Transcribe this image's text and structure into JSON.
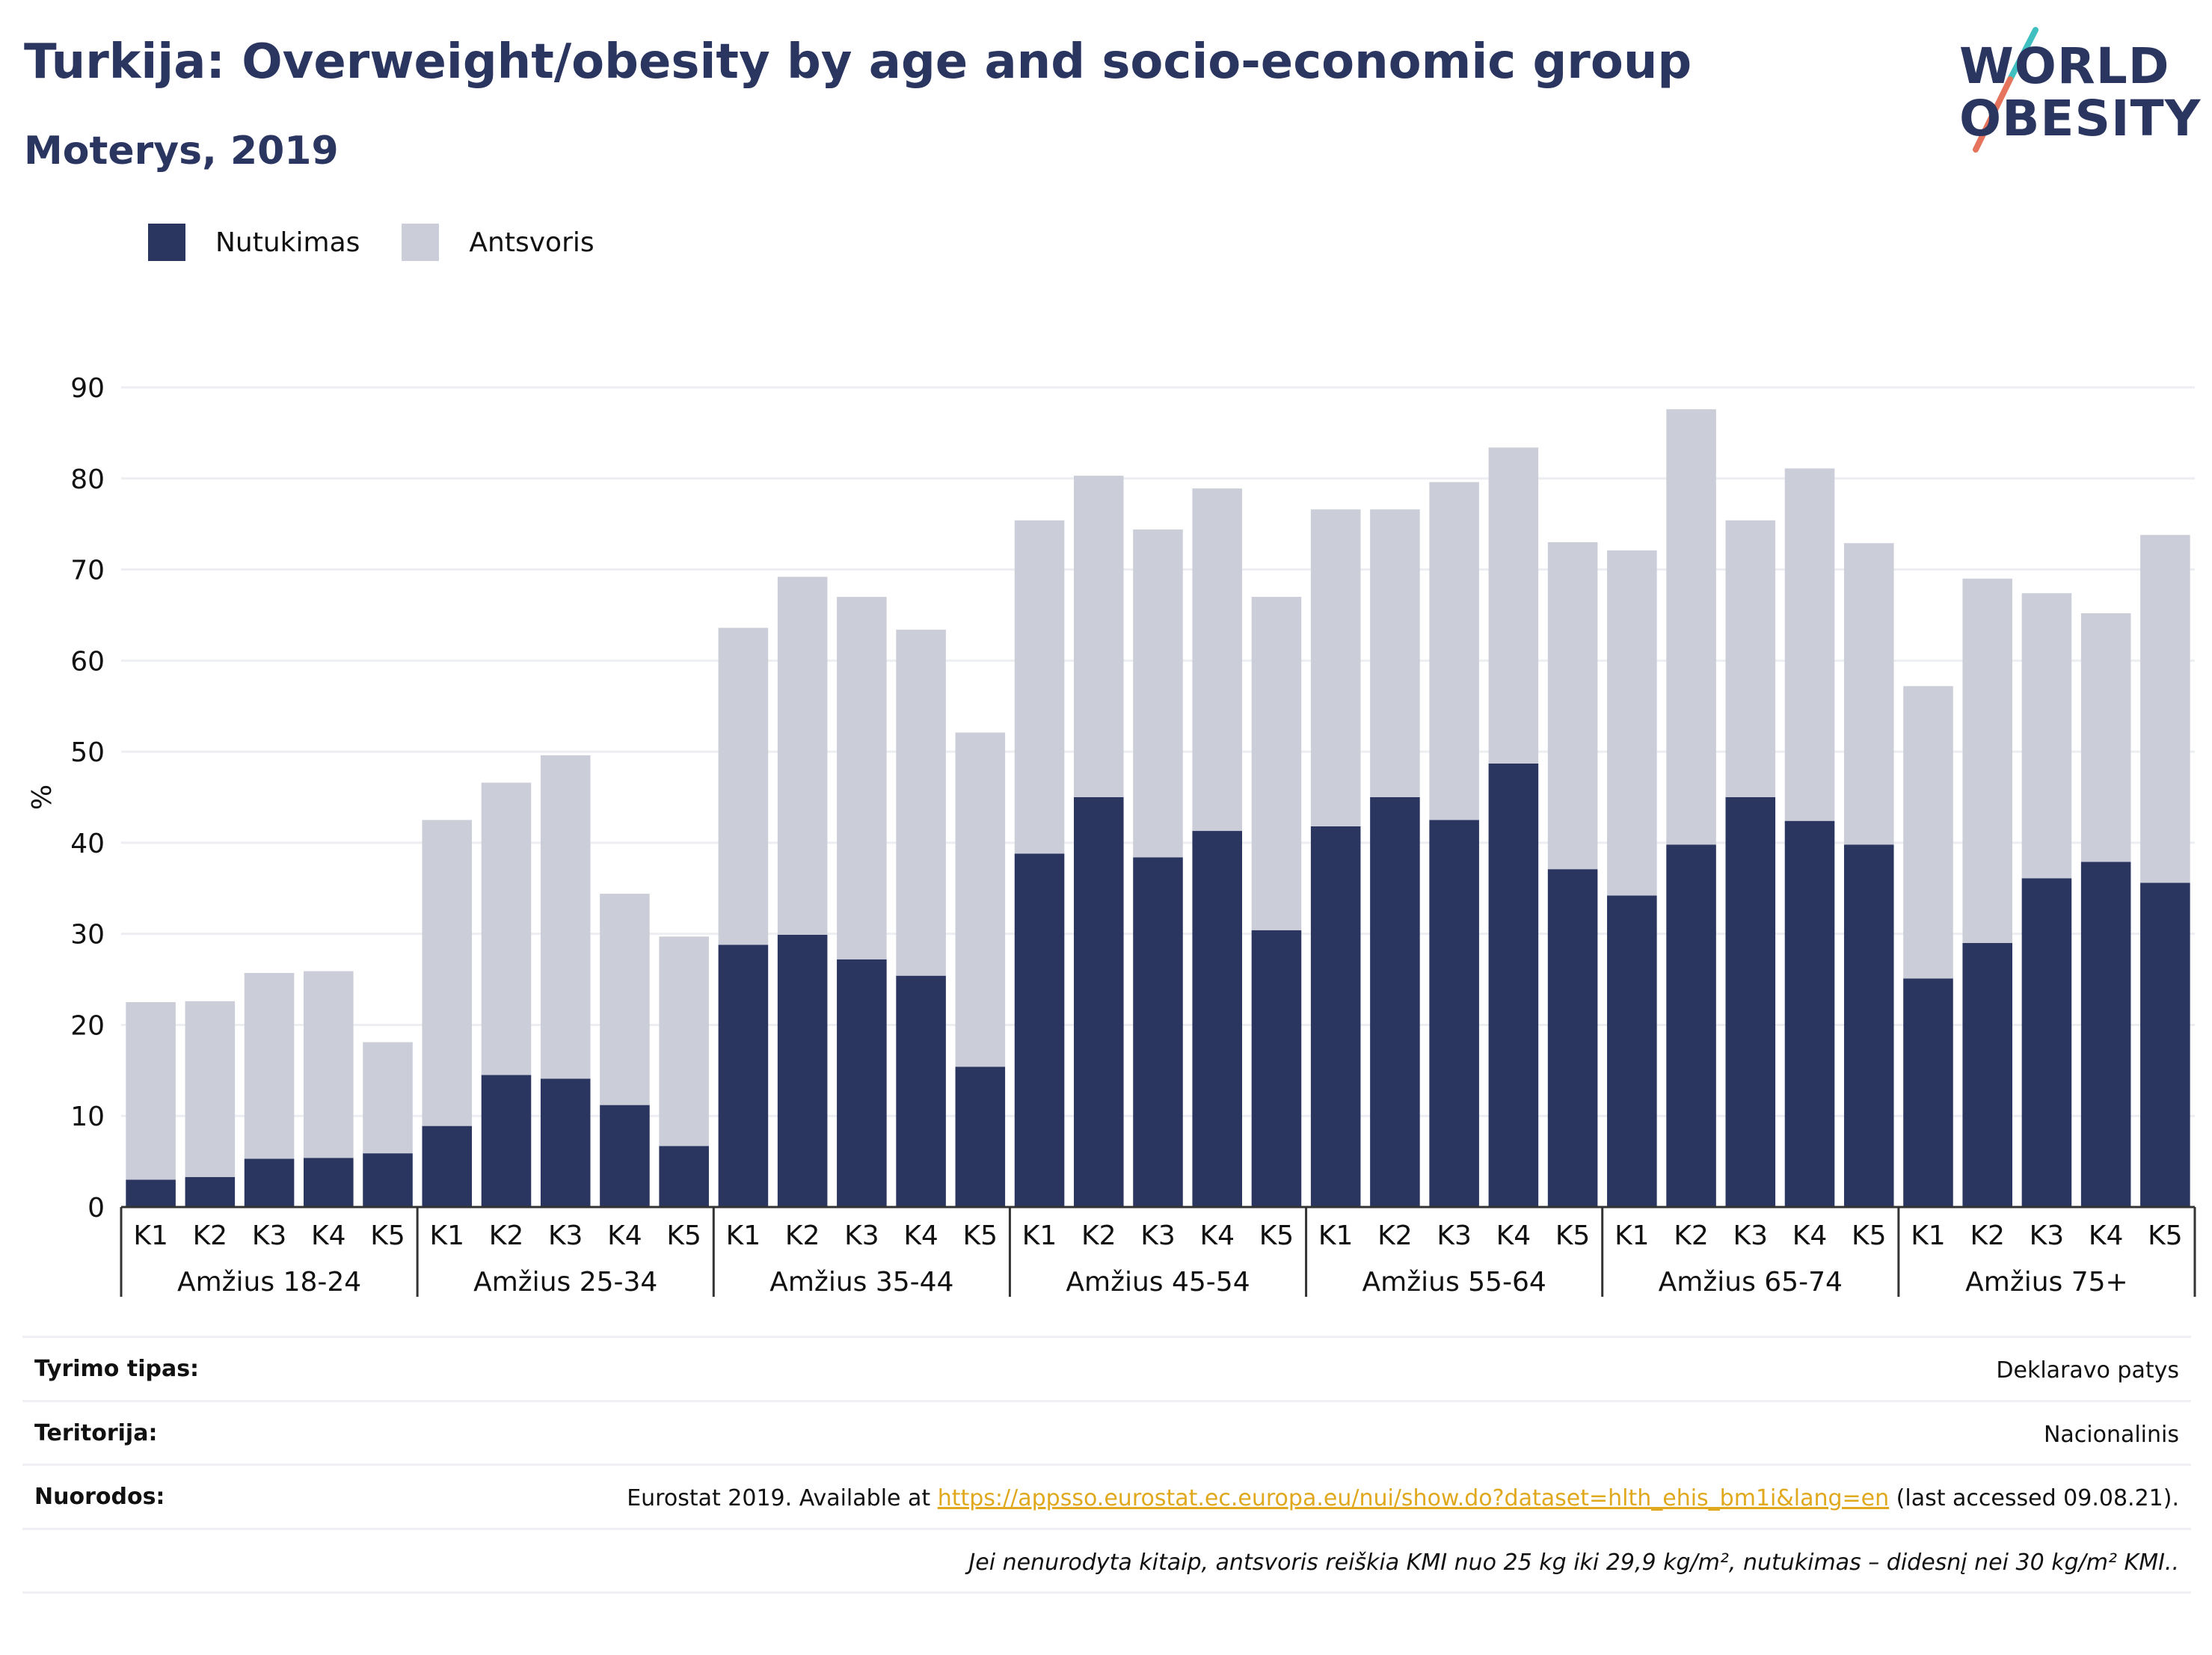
{
  "title": "Turkija: Overweight/obesity by age and socio-economic group",
  "subtitle": "Moterys, 2019",
  "logo": {
    "line1": "WORLD",
    "line2": "OBESITY"
  },
  "colors": {
    "obesity": "#2a3560",
    "overweight": "#cbcdd8",
    "accent_teal": "#3fbfbf",
    "accent_coral": "#e6735c",
    "link": "#e0a81c"
  },
  "legend": [
    {
      "label": "Nutukimas",
      "color": "#2a3560"
    },
    {
      "label": "Antsvoris",
      "color": "#cbcdd8"
    }
  ],
  "chart_data": {
    "type": "bar",
    "stacked": true,
    "ylabel": "%",
    "ylim": [
      0,
      90
    ],
    "yticks": [
      0,
      10,
      20,
      30,
      40,
      50,
      60,
      70,
      80,
      90
    ],
    "grid": true,
    "legend_position": "top-left",
    "groups": [
      "Amžius 18-24",
      "Amžius 25-34",
      "Amžius 35-44",
      "Amžius 45-54",
      "Amžius 55-64",
      "Amžius 65-74",
      "Amžius 75+"
    ],
    "categories": [
      "K1",
      "K2",
      "K3",
      "K4",
      "K5"
    ],
    "series": [
      {
        "name": "Nutukimas",
        "values": [
          [
            3.0,
            3.3,
            5.3,
            5.4,
            5.9
          ],
          [
            8.9,
            14.5,
            14.1,
            11.2,
            6.7
          ],
          [
            28.8,
            29.9,
            27.2,
            25.4,
            15.4
          ],
          [
            38.8,
            45.0,
            38.4,
            41.3,
            30.4
          ],
          [
            41.8,
            45.0,
            42.5,
            48.7,
            37.1
          ],
          [
            34.2,
            39.8,
            45.0,
            42.4,
            39.8
          ],
          [
            25.1,
            29.0,
            36.1,
            37.9,
            35.6
          ]
        ]
      },
      {
        "name": "Antsvoris",
        "values": [
          [
            19.5,
            19.3,
            20.4,
            20.5,
            12.2
          ],
          [
            33.6,
            32.1,
            35.5,
            23.2,
            23.0
          ],
          [
            34.8,
            39.3,
            39.8,
            38.0,
            36.7
          ],
          [
            36.6,
            35.3,
            36.0,
            37.6,
            36.6
          ],
          [
            34.8,
            31.6,
            37.1,
            34.7,
            35.9
          ],
          [
            37.9,
            47.8,
            30.4,
            38.7,
            33.1
          ],
          [
            32.1,
            40.0,
            31.3,
            27.3,
            38.2
          ]
        ]
      }
    ]
  },
  "info": {
    "survey_label": "Tyrimo tipas:",
    "survey_value": "Deklaravo patys",
    "territory_label": "Teritorija:",
    "territory_value": "Nacionalinis",
    "refs_label": "Nuorodos:",
    "refs_prefix": "Eurostat 2019. Available at ",
    "refs_link": "https://appsso.eurostat.ec.europa.eu/nui/show.do?dataset=hlth_ehis_bm1i&lang=en",
    "refs_suffix": " (last accessed 09.08.21).",
    "note": "Jei nenurodyta kitaip, antsvoris reiškia KMI nuo 25 kg iki 29,9 kg/m², nutukimas – didesnį nei 30 kg/m² KMI.."
  }
}
